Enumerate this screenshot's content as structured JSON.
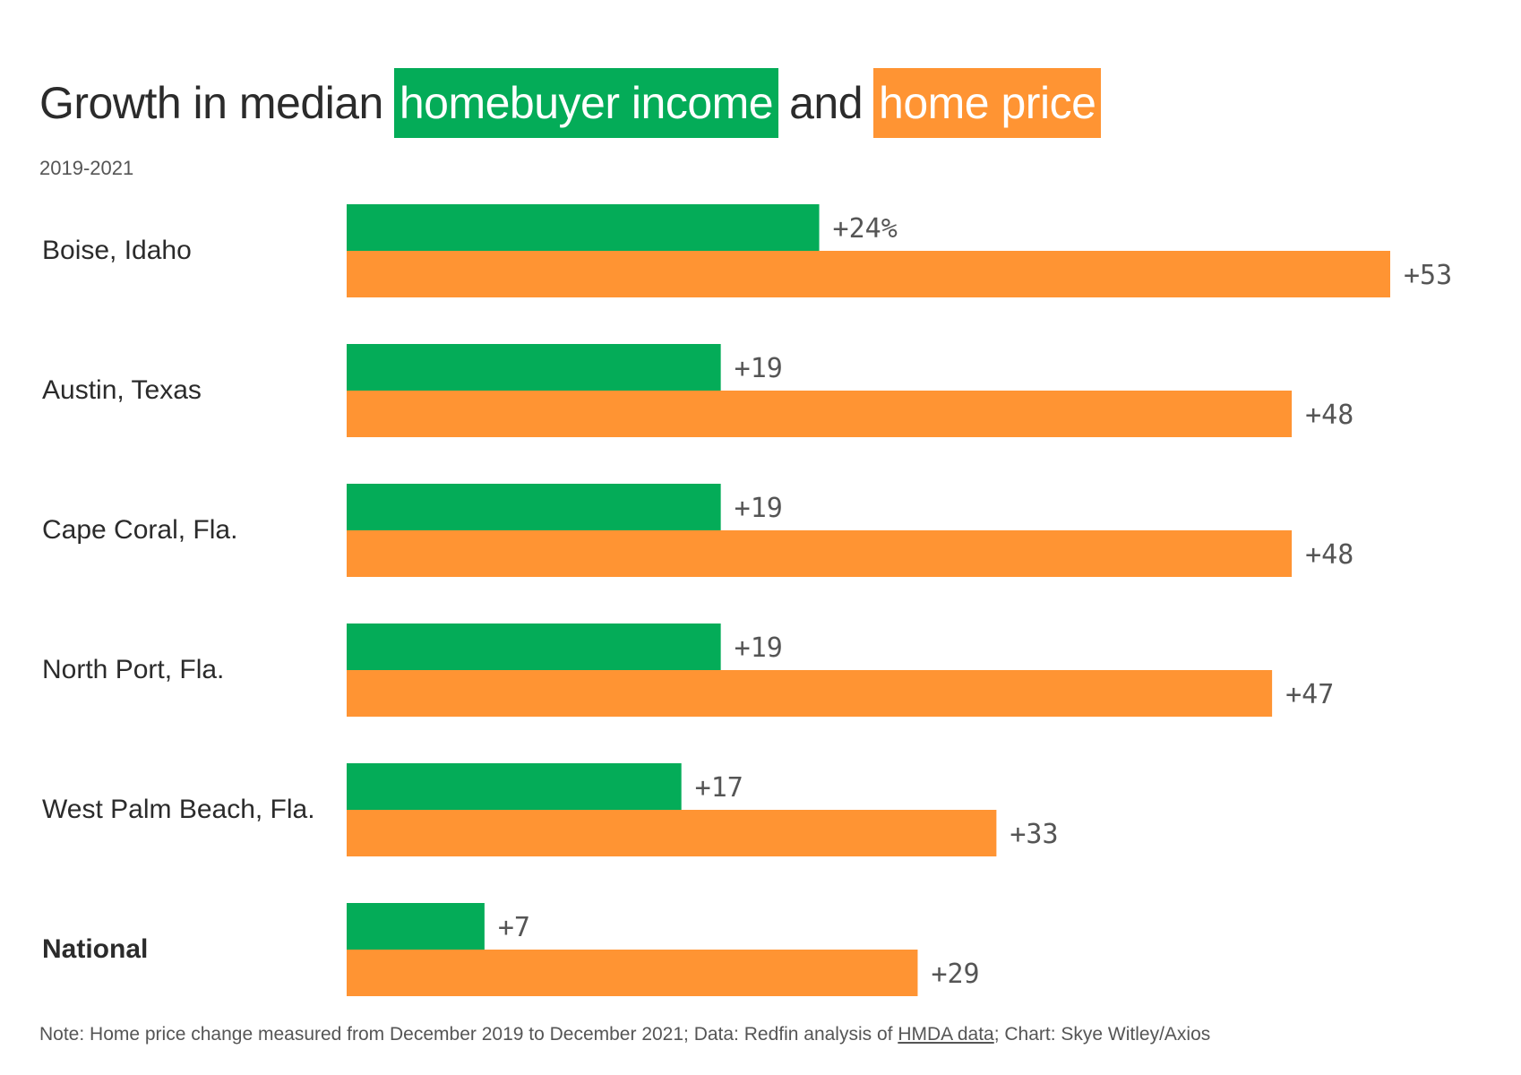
{
  "title": {
    "prefix": "Growth in median",
    "highlight_income": "homebuyer income",
    "connector": "and",
    "highlight_price": "home price"
  },
  "subtitle": "2019-2021",
  "colors": {
    "income": "#04ac58",
    "price": "#ff9433",
    "text": "#2b2b2b",
    "value_label": "#555555"
  },
  "chart_data": {
    "type": "bar",
    "orientation": "horizontal",
    "categories": [
      "Boise, Idaho",
      "Austin, Texas",
      "Cape Coral, Fla.",
      "North Port, Fla.",
      "West Palm Beach, Fla.",
      "National"
    ],
    "bold_categories": [
      "National"
    ],
    "series": [
      {
        "name": "homebuyer income",
        "values": [
          24,
          19,
          19,
          19,
          17,
          7
        ],
        "labels": [
          "+24%",
          "+19",
          "+19",
          "+19",
          "+17",
          "+7"
        ]
      },
      {
        "name": "home price",
        "values": [
          53,
          48,
          48,
          47,
          33,
          29
        ],
        "labels": [
          "+53",
          "+48",
          "+48",
          "+47",
          "+33",
          "+29"
        ]
      }
    ],
    "xlim": [
      0,
      53
    ],
    "grid": false
  },
  "note": {
    "prefix": "Note: Home price change measured from December 2019 to December 2021; Data: Redfin analysis of ",
    "link": "HMDA data",
    "suffix": "; Chart: Skye Witley/Axios"
  }
}
